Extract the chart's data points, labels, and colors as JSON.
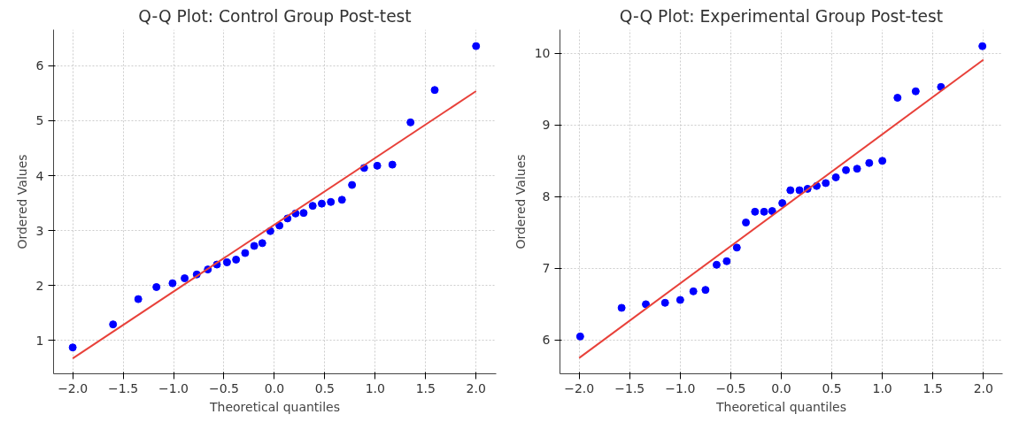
{
  "chart_data": [
    {
      "type": "scatter",
      "title": "Q-Q Plot: Control Group Post-test",
      "xlabel": "Theoretical quantiles",
      "ylabel": "Ordered Values",
      "marker": "circle",
      "grid": true,
      "xlim": [
        -2.19,
        2.2
      ],
      "ylim": [
        0.39,
        6.66
      ],
      "xticks": [
        {
          "value": -2,
          "label": "−2.0"
        },
        {
          "value": -1.5,
          "label": "−1.5"
        },
        {
          "value": -1,
          "label": "−1.0"
        },
        {
          "value": -0.5,
          "label": "−0.5"
        },
        {
          "value": 0,
          "label": "0.0"
        },
        {
          "value": 0.5,
          "label": "0.5"
        },
        {
          "value": 1,
          "label": "1.0"
        },
        {
          "value": 1.5,
          "label": "1.5"
        },
        {
          "value": 2,
          "label": "2.0"
        }
      ],
      "yticks": [
        1,
        2,
        3,
        4,
        5,
        6
      ],
      "series": [
        {
          "color": "#0000ff",
          "x": [
            -2.0,
            -1.6,
            -1.35,
            -1.17,
            -1.01,
            -0.89,
            -0.77,
            -0.66,
            -0.57,
            -0.47,
            -0.38,
            -0.29,
            -0.2,
            -0.12,
            -0.04,
            0.05,
            0.13,
            0.21,
            0.29,
            0.38,
            0.47,
            0.56,
            0.67,
            0.77,
            0.89,
            1.02,
            1.17,
            1.35,
            1.59,
            2.0
          ],
          "values": [
            0.87,
            1.29,
            1.75,
            1.97,
            2.04,
            2.13,
            2.2,
            2.29,
            2.38,
            2.42,
            2.47,
            2.59,
            2.72,
            2.77,
            2.99,
            3.09,
            3.22,
            3.31,
            3.32,
            3.45,
            3.49,
            3.52,
            3.56,
            3.83,
            4.14,
            4.18,
            4.2,
            4.97,
            5.56,
            6.36
          ]
        },
        {
          "type": "line",
          "color": "#e8413a",
          "line_style": "solid",
          "marker": "none",
          "x": [
            -2.0,
            2.0
          ],
          "values": [
            0.67,
            5.54
          ]
        }
      ]
    },
    {
      "type": "scatter",
      "title": "Q-Q Plot: Experimental Group Post-test",
      "xlabel": "Theoretical quantiles",
      "ylabel": "Ordered Values",
      "marker": "circle",
      "grid": true,
      "xlim": [
        -2.19,
        2.19
      ],
      "ylim": [
        5.53,
        10.33
      ],
      "xticks": [
        {
          "value": -2,
          "label": "−2.0"
        },
        {
          "value": -1.5,
          "label": "−1.5"
        },
        {
          "value": -1,
          "label": "−1.0"
        },
        {
          "value": -0.5,
          "label": "−0.5"
        },
        {
          "value": 0,
          "label": "0.0"
        },
        {
          "value": 0.5,
          "label": "0.5"
        },
        {
          "value": 1,
          "label": "1.0"
        },
        {
          "value": 1.5,
          "label": "1.5"
        },
        {
          "value": 2,
          "label": "2.0"
        }
      ],
      "yticks": [
        6,
        7,
        8,
        9,
        10
      ],
      "series": [
        {
          "color": "#0000ff",
          "x": [
            -1.99,
            -1.58,
            -1.34,
            -1.15,
            -1.0,
            -0.87,
            -0.75,
            -0.64,
            -0.54,
            -0.44,
            -0.35,
            -0.26,
            -0.17,
            -0.09,
            0.01,
            0.09,
            0.18,
            0.26,
            0.35,
            0.44,
            0.54,
            0.64,
            0.75,
            0.87,
            1.0,
            1.15,
            1.33,
            1.58,
            1.99
          ],
          "values": [
            6.05,
            6.45,
            6.5,
            6.52,
            6.56,
            6.68,
            6.7,
            7.05,
            7.1,
            7.29,
            7.64,
            7.79,
            7.79,
            7.8,
            7.91,
            8.09,
            8.09,
            8.11,
            8.15,
            8.19,
            8.27,
            8.37,
            8.39,
            8.47,
            8.5,
            9.38,
            9.47,
            9.53,
            10.1
          ]
        },
        {
          "type": "line",
          "color": "#e8413a",
          "line_style": "solid",
          "marker": "none",
          "x": [
            -2.0,
            2.0
          ],
          "values": [
            5.75,
            9.91
          ]
        }
      ]
    }
  ]
}
